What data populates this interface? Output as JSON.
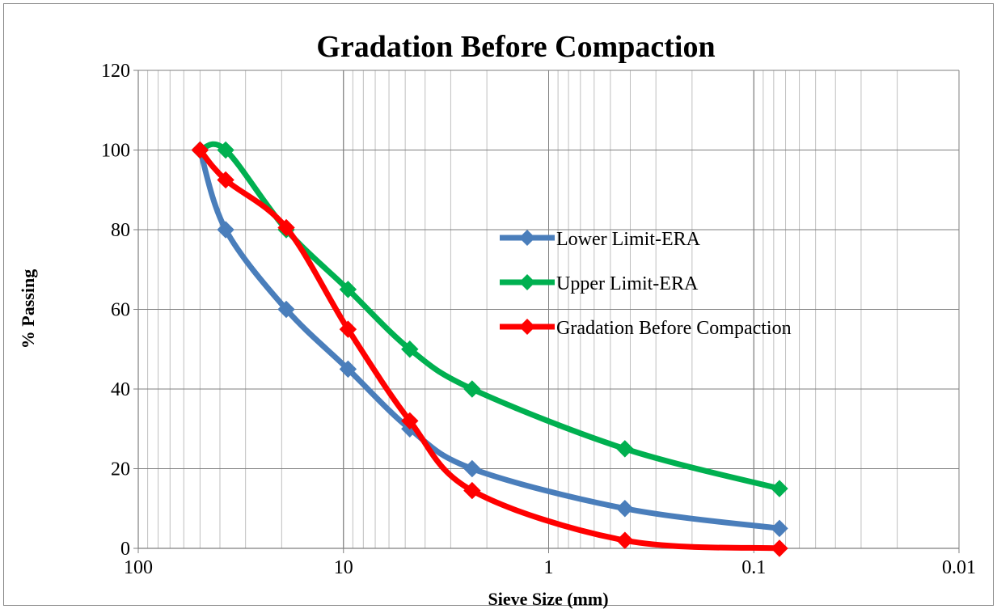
{
  "chart_data": {
    "type": "line",
    "title": "Gradation Before Compaction",
    "xlabel": "Sieve Size (mm)",
    "ylabel": "% Passing",
    "x_scale": "log",
    "x_reversed": true,
    "xlim": [
      100,
      0.01
    ],
    "ylim": [
      0,
      120
    ],
    "x_ticks": [
      "100",
      "10",
      "1",
      "0.1",
      "0.01"
    ],
    "y_ticks": [
      "0",
      "20",
      "40",
      "60",
      "80",
      "100",
      "120"
    ],
    "grid": true,
    "legend_position": "center-right",
    "series": [
      {
        "name": "Lower Limit-ERA",
        "color": "#4a7ebb",
        "x": [
          50,
          37.5,
          19,
          9.5,
          4.75,
          2.36,
          0.425,
          0.075
        ],
        "y": [
          100,
          80,
          60,
          45,
          30,
          20,
          10,
          5
        ]
      },
      {
        "name": "Upper Limit-ERA",
        "color": "#00b050",
        "x": [
          50,
          37.5,
          19,
          9.5,
          4.75,
          2.36,
          0.425,
          0.075
        ],
        "y": [
          100,
          100,
          80,
          65,
          50,
          40,
          25,
          15
        ]
      },
      {
        "name": "Gradation Before Compaction",
        "color": "#ff0000",
        "x": [
          50,
          37.5,
          19,
          9.5,
          4.75,
          2.36,
          0.425,
          0.075
        ],
        "y": [
          100,
          92.5,
          80.5,
          55,
          32,
          14.5,
          2,
          0
        ]
      }
    ]
  }
}
